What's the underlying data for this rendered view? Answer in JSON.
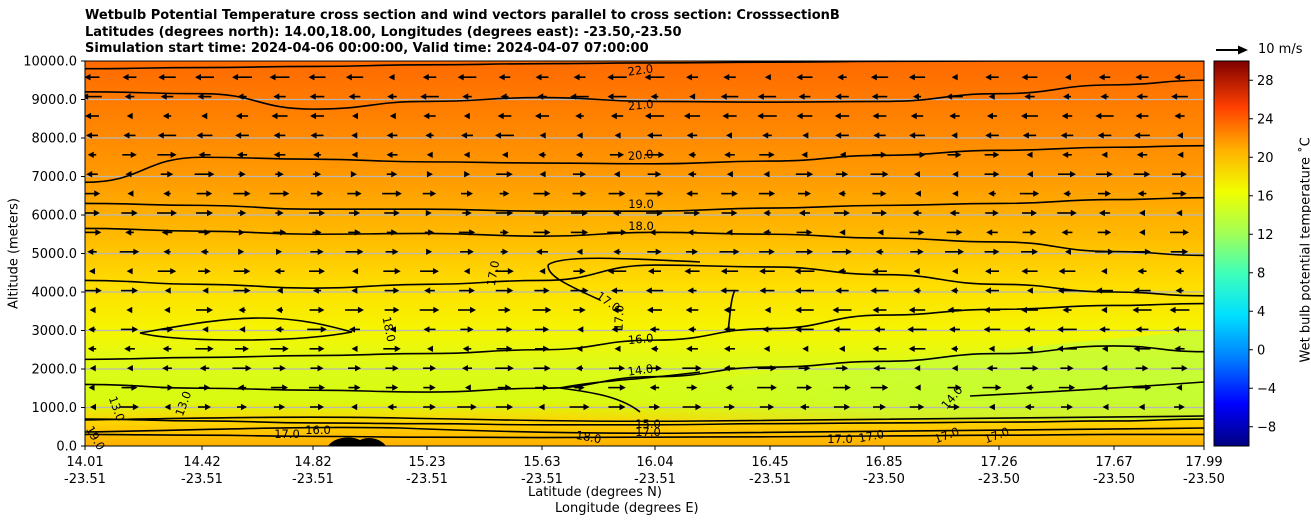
{
  "title": {
    "line1": "Wetbulb Potential Temperature cross section and wind vectors parallel to cross section: CrosssectionB",
    "line2": "Latitudes (degrees north): 14.00,18.00, Longitudes (degrees east): -23.50,-23.50",
    "line3": "Simulation start time: 2024-04-06 00:00:00, Valid time: 2024-04-07 07:00:00"
  },
  "quiver_key": {
    "label": "10 m/s"
  },
  "chart_data": {
    "type": "contourf_cross_section",
    "xlabel_lat": "Latitude (degrees N)",
    "xlabel_lon": "Longitude (degrees E)",
    "ylabel": "Altitude (meters)",
    "ylim": [
      0,
      10000
    ],
    "grid": "horizontal",
    "x_ticks": [
      {
        "lat": "14.01",
        "lon": "-23.51"
      },
      {
        "lat": "14.42",
        "lon": "-23.51"
      },
      {
        "lat": "14.82",
        "lon": "-23.51"
      },
      {
        "lat": "15.23",
        "lon": "-23.51"
      },
      {
        "lat": "15.63",
        "lon": "-23.51"
      },
      {
        "lat": "16.04",
        "lon": "-23.51"
      },
      {
        "lat": "16.45",
        "lon": "-23.51"
      },
      {
        "lat": "16.85",
        "lon": "-23.50"
      },
      {
        "lat": "17.26",
        "lon": "-23.50"
      },
      {
        "lat": "17.67",
        "lon": "-23.50"
      },
      {
        "lat": "17.99",
        "lon": "-23.50"
      }
    ],
    "y_ticks": [
      "0.0",
      "1000.0",
      "2000.0",
      "3000.0",
      "4000.0",
      "5000.0",
      "6000.0",
      "7000.0",
      "8000.0",
      "9000.0",
      "10000.0"
    ],
    "colorbar": {
      "label": "Wet bulb potential temperature ˚C",
      "range": [
        -10,
        30
      ],
      "ticks": [
        "−8",
        "−4",
        "0",
        "4",
        "8",
        "12",
        "16",
        "20",
        "24",
        "28"
      ]
    },
    "contours": [
      {
        "level": 22,
        "label": "22.0",
        "heights": [
          9800,
          9830,
          9860,
          9900,
          9930,
          9950,
          9970,
          9990,
          10000,
          10000,
          10000
        ]
      },
      {
        "level": 21,
        "label": "21.0",
        "heights": [
          9200,
          9150,
          8750,
          8950,
          9050,
          8950,
          8930,
          8950,
          9150,
          9380,
          9500
        ]
      },
      {
        "level": 20,
        "label": "20.0",
        "heights": [
          6850,
          7500,
          7450,
          7380,
          7350,
          7330,
          7400,
          7550,
          7680,
          7760,
          7800
        ]
      },
      {
        "level": 19,
        "label": "19.0",
        "heights": [
          6300,
          6250,
          6150,
          6150,
          6100,
          6100,
          6180,
          6250,
          6300,
          6400,
          6450
        ]
      },
      {
        "level": 18,
        "label": "18.0",
        "heights": [
          5650,
          5580,
          5500,
          5520,
          5450,
          5550,
          5500,
          5400,
          5300,
          5050,
          4950
        ]
      },
      {
        "level": 17,
        "label": "17.0",
        "heights": [
          4300,
          4200,
          4100,
          4200,
          4300,
          4700,
          4650,
          4450,
          4200,
          4000,
          3900
        ]
      },
      {
        "level": 16,
        "label": "16.0",
        "heights": [
          2250,
          2300,
          2350,
          2400,
          2500,
          2750,
          3050,
          3400,
          3550,
          3650,
          3700
        ]
      },
      {
        "level": 14,
        "label": "14.0",
        "heights": [
          1600,
          1500,
          1450,
          1400,
          1500,
          1800,
          2050,
          2200,
          2400,
          2600,
          2450
        ]
      },
      {
        "level": 15,
        "label": "15.0",
        "heights": [
          700,
          650,
          600,
          580,
          550,
          550,
          580,
          600,
          620,
          650,
          700
        ]
      },
      {
        "level": 17,
        "label": "17.0",
        "heights": [
          300,
          280,
          250,
          230,
          220,
          230,
          240,
          260,
          280,
          300,
          300
        ]
      }
    ],
    "contour_label_annotations": [
      "22.0",
      "21.0",
      "20.0",
      "19.0",
      "18.0",
      "17.0",
      "17.0",
      "17.0",
      "16.0",
      "14.0",
      "13.0",
      "13.0",
      "14.0",
      "18.0",
      "15.0",
      "17.0",
      "17.0",
      "16.0",
      "18.0",
      "17.0",
      "17.0",
      "17.0",
      "17.0",
      "19.0"
    ]
  }
}
